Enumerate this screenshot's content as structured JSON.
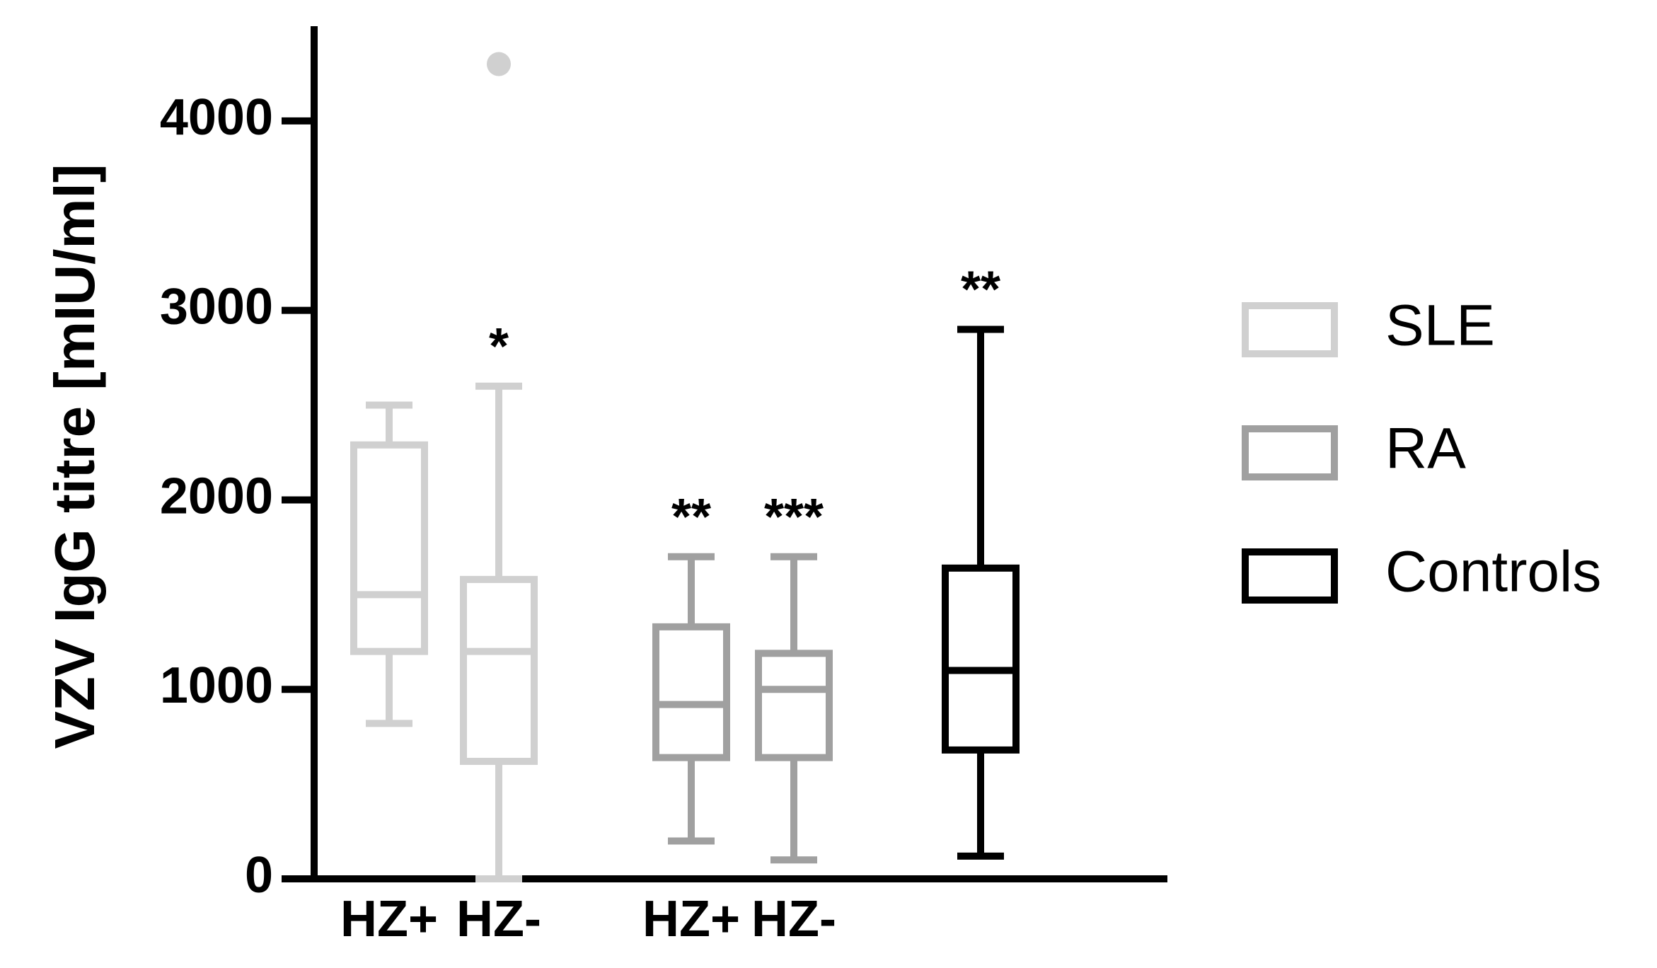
{
  "chart_data": {
    "type": "box",
    "y_label": "VZV IgG titre [mIU/ml]",
    "categories": [
      "HZ+",
      "HZ-",
      "HZ+",
      "HZ-",
      null
    ],
    "annotations": [
      null,
      "*",
      "**",
      "***",
      "**"
    ],
    "ylim": [
      0,
      4500
    ],
    "yticks": [
      0,
      1000,
      2000,
      3000,
      4000
    ],
    "legend": "right",
    "series": [
      {
        "name": "SLE",
        "color": "#d0d0d0",
        "whisker_low": [
          820,
          0,
          null,
          null,
          null
        ],
        "q1": [
          1200,
          620,
          null,
          null,
          null
        ],
        "median": [
          1500,
          1200,
          null,
          null,
          null
        ],
        "q3": [
          2290,
          1580,
          null,
          null,
          null
        ],
        "whisker_high": [
          2500,
          2600,
          null,
          null,
          null
        ],
        "outliers": [
          [],
          [
            4300
          ],
          [],
          [],
          []
        ]
      },
      {
        "name": "RA",
        "color": "#a0a0a0",
        "whisker_low": [
          null,
          null,
          200,
          100,
          null
        ],
        "q1": [
          null,
          null,
          640,
          640,
          null
        ],
        "median": [
          null,
          null,
          920,
          1000,
          null
        ],
        "q3": [
          null,
          null,
          1330,
          1190,
          null
        ],
        "whisker_high": [
          null,
          null,
          1700,
          1700,
          null
        ],
        "outliers": [
          [],
          [],
          [],
          [],
          []
        ]
      },
      {
        "name": "Controls",
        "color": "#000000",
        "whisker_low": [
          null,
          null,
          null,
          null,
          120
        ],
        "q1": [
          null,
          null,
          null,
          null,
          680
        ],
        "median": [
          null,
          null,
          null,
          null,
          1100
        ],
        "q3": [
          null,
          null,
          null,
          null,
          1640
        ],
        "whisker_high": [
          null,
          null,
          null,
          null,
          2900
        ],
        "outliers": [
          [],
          [],
          [],
          [],
          []
        ]
      }
    ]
  }
}
